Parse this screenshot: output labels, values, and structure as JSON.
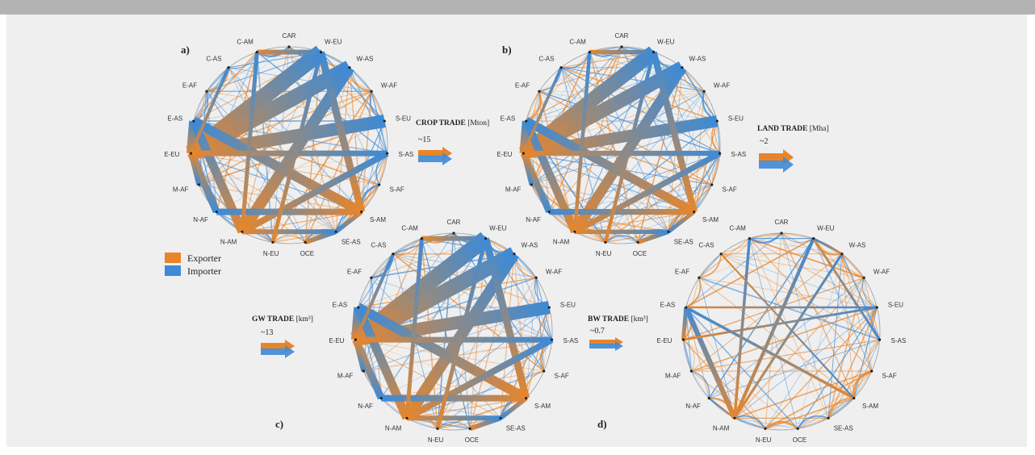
{
  "regions": [
    "CAR",
    "W-EU",
    "W-AS",
    "W-AF",
    "S-EU",
    "S-AS",
    "S-AF",
    "S-AM",
    "SE-AS",
    "OCE",
    "N-EU",
    "N-AM",
    "N-AF",
    "M-AF",
    "E-EU",
    "E-AS",
    "E-AF",
    "C-AS",
    "C-AM"
  ],
  "panels": [
    {
      "id": "a",
      "label": "a)",
      "intensity": "high"
    },
    {
      "id": "b",
      "label": "b)",
      "intensity": "high"
    },
    {
      "id": "c",
      "label": "c)",
      "intensity": "high"
    },
    {
      "id": "d",
      "label": "d)",
      "intensity": "low"
    }
  ],
  "trades": [
    {
      "name": "CROP TRADE",
      "unit": "[Mton]",
      "scale": "~15"
    },
    {
      "name": "LAND TRADE",
      "unit": "[Mha]",
      "scale": "~2"
    },
    {
      "name": "GW TRADE",
      "unit": "[km³]",
      "scale": "~13"
    },
    {
      "name": "BW TRADE",
      "unit": "[km³]",
      "scale": "~0.7"
    }
  ],
  "legend": {
    "exporter": "Exporter",
    "importer": "Importer"
  },
  "colors": {
    "exporter": "#e8852b",
    "importer": "#3d8ad6",
    "mid": "#8a8a8a",
    "background": "#efefef",
    "topbar": "#b3b3b3"
  }
}
